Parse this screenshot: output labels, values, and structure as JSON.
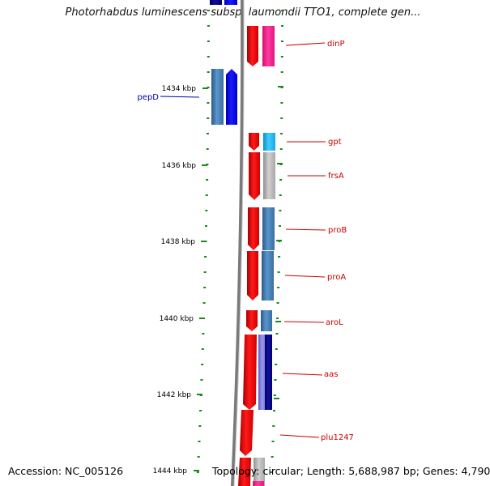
{
  "title": "Photorhabdus luminescens subsp. laumondii TTO1, complete gen...",
  "footer": {
    "accession": "Accession: NC_005126",
    "topology": "Topology: circular; Length: 5,688,987 bp; Genes: 4,790"
  },
  "kbp_ticks": [
    {
      "kbp": 1434,
      "label": "1434 kbp"
    },
    {
      "kbp": 1436,
      "label": "1436 kbp"
    },
    {
      "kbp": 1438,
      "label": "1438 kbp"
    },
    {
      "kbp": 1440,
      "label": "1440 kbp"
    },
    {
      "kbp": 1442,
      "label": "1442 kbp"
    },
    {
      "kbp": 1444,
      "label": "1444 kbp"
    }
  ],
  "gene_labels": {
    "dinP": "dinP",
    "pepD": "pepD",
    "gpt": "gpt",
    "frsA": "frsA",
    "proB": "proB",
    "proA": "proA",
    "aroL": "aroL",
    "aas": "aas",
    "plu1247": "plu1247"
  },
  "colors": {
    "cds_forward": "#ff0000",
    "cds_reverse": "#0000ff",
    "label_forward": "#cc0000",
    "label_reverse": "#0000aa",
    "backbone": "#808080",
    "tick": "#1a8a1a",
    "cog_dinP": "#ff1a8c",
    "cog_pepD": "#3d7ab8",
    "cog_gpt": "#1eb4f0",
    "cog_frsA": "#b0b0b0",
    "cog_proB": "#4682b4",
    "cog_proA": "#4682b4",
    "cog_aroL": "#4682b4",
    "cog_aas_1": "#7a7ae0",
    "cog_aas_2": "#00008b",
    "cog_plu1247": "#c0c0c0"
  }
}
